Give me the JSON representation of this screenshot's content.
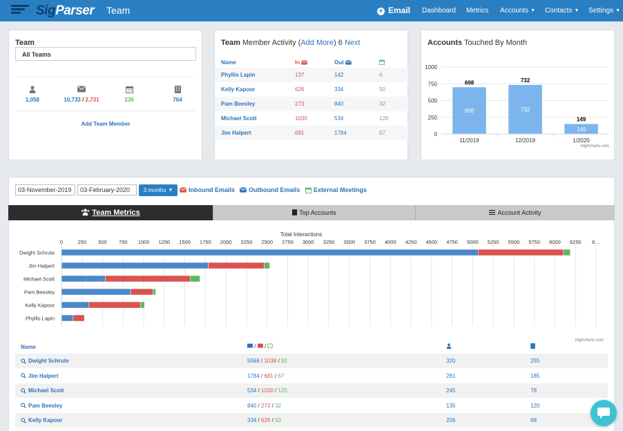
{
  "nav": {
    "brand_sig": "Sig",
    "brand_parser": "Parser",
    "title": "Team",
    "email": "Email",
    "items": [
      "Dashboard",
      "Metrics",
      "Accounts",
      "Contacts",
      "Settings"
    ]
  },
  "team_panel": {
    "title": "Team",
    "select_value": "All Teams",
    "stats": {
      "people": "1,058",
      "emails_out": "10,733",
      "emails_sep": " / ",
      "emails_in": "2,731",
      "meetings": "236",
      "accounts": "764"
    },
    "add_member": "Add Team Member"
  },
  "activity_panel": {
    "title_bold": "Team",
    "title_rest": " Member Activity (",
    "add_more": "Add More",
    "title_close": ") 6 ",
    "next": "Next",
    "headers": {
      "name": "Name",
      "in": "In",
      "out": "Out"
    },
    "rows": [
      {
        "name": "Phyllis Lapin",
        "in": "137",
        "out": "142",
        "meet": "4"
      },
      {
        "name": "Kelly Kapoor",
        "in": "626",
        "out": "334",
        "meet": "50"
      },
      {
        "name": "Pam Beesley",
        "in": "273",
        "out": "840",
        "meet": "32"
      },
      {
        "name": "Michael Scott",
        "in": "1030",
        "out": "534",
        "meet": "120"
      },
      {
        "name": "Jim Halpert",
        "in": "681",
        "out": "1784",
        "meet": "67"
      }
    ]
  },
  "accounts_panel": {
    "title_bold": "Accounts",
    "title_rest": " Touched By Month",
    "credits": "Highcharts.com"
  },
  "chart_data": [
    {
      "type": "bar",
      "title": "",
      "categories": [
        "11/2019",
        "12/2019",
        "1/2020"
      ],
      "values": [
        698,
        732,
        149
      ],
      "ylim": [
        0,
        1000
      ],
      "yticks": [
        "1000",
        "750",
        "500",
        "250",
        "0"
      ],
      "color": "#7cb5ec"
    },
    {
      "type": "bar",
      "orientation": "horizontal",
      "stacked": true,
      "title": "Total Interactions",
      "categories": [
        "Dwight Schrute",
        "Jim Halpert",
        "Michael Scott",
        "Pam Beesley",
        "Kelly Kapoor",
        "Phyllis Lapin"
      ],
      "series": [
        {
          "color": "#4a88c9",
          "values": [
            5066,
            1784,
            534,
            840,
            334,
            142
          ]
        },
        {
          "color": "#d9534f",
          "values": [
            1038,
            681,
            1030,
            273,
            626,
            137
          ]
        },
        {
          "color": "#5cb85c",
          "values": [
            82,
            67,
            120,
            32,
            50,
            4
          ]
        }
      ],
      "xlim": [
        0,
        6500
      ],
      "xticks": [
        "0",
        "250",
        "500",
        "750",
        "1000",
        "1250",
        "1500",
        "1750",
        "2000",
        "2250",
        "2500",
        "2750",
        "3000",
        "3250",
        "3500",
        "3750",
        "4000",
        "4250",
        "4500",
        "4750",
        "5000",
        "5250",
        "5500",
        "5750",
        "6000",
        "6250",
        "6…"
      ],
      "credits": "Highcharts.com"
    }
  ],
  "filters": {
    "start_date": "03-November-2019",
    "end_date": "03-February-2020",
    "range_button": "3 months",
    "inbound": "Inbound Emails",
    "outbound": "Outbound Emails",
    "meetings": "External Meetings"
  },
  "tabs": [
    "Team Metrics",
    "Top Accounts",
    "Account Activity"
  ],
  "metrics_table": {
    "header_name": "Name",
    "sep": " / ",
    "rows": [
      {
        "name": "Dwight Schrute",
        "out": "5066",
        "in": "1038",
        "meet": "82",
        "people": "320",
        "accounts": "255"
      },
      {
        "name": "Jim Halpert",
        "out": "1784",
        "in": "681",
        "meet": "67",
        "people": "281",
        "accounts": "185"
      },
      {
        "name": "Michael Scott",
        "out": "534",
        "in": "1030",
        "meet": "120",
        "people": "245",
        "accounts": "78"
      },
      {
        "name": "Pam Beesley",
        "out": "840",
        "in": "273",
        "meet": "32",
        "people": "135",
        "accounts": "120"
      },
      {
        "name": "Kelly Kapoor",
        "out": "334",
        "in": "626",
        "meet": "50",
        "people": "206",
        "accounts": "68"
      }
    ]
  }
}
